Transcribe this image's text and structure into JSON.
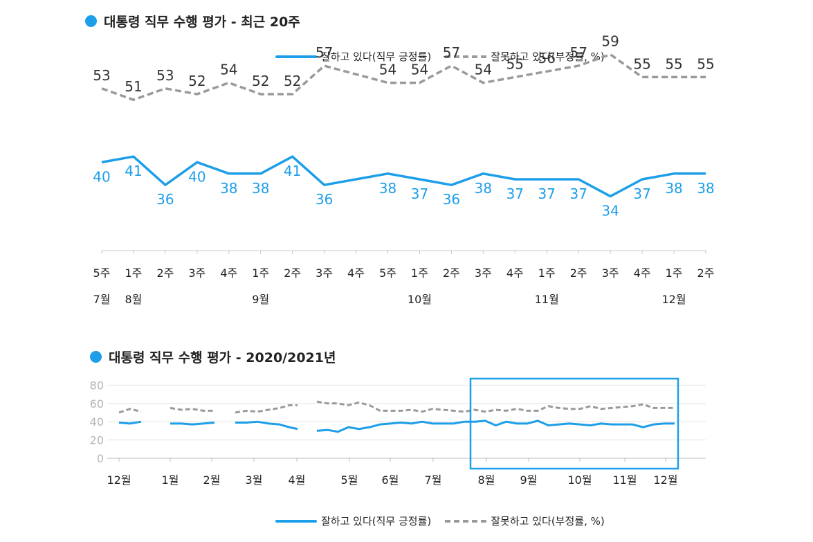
{
  "colors": {
    "approve": "#1c9ee8",
    "disapprove": "#9a9a9a",
    "highlight": "#1c9ee8"
  },
  "legend": {
    "approve_label": "잘하고 있다(직무 긍정률)",
    "disapprove_label": "잘못하고 있다(부정률, %)"
  },
  "chart_data": [
    {
      "type": "line",
      "title": "대통령 직무 수행 평가 - 최근 20주",
      "categories": [
        "5주",
        "1주",
        "2주",
        "3주",
        "4주",
        "1주",
        "2주",
        "3주",
        "4주",
        "5주",
        "1주",
        "2주",
        "3주",
        "4주",
        "1주",
        "2주",
        "3주",
        "4주",
        "1주",
        "2주"
      ],
      "month_labels": [
        {
          "index": 0,
          "label": "7월"
        },
        {
          "index": 1,
          "label": "8월"
        },
        {
          "index": 5,
          "label": "9월"
        },
        {
          "index": 10,
          "label": "10월"
        },
        {
          "index": 14,
          "label": "11월"
        },
        {
          "index": 18,
          "label": "12월"
        }
      ],
      "series": [
        {
          "name": "잘못하고 있다(부정률, %)",
          "style": "dashed",
          "values": [
            53,
            51,
            53,
            52,
            54,
            52,
            52,
            57,
            null,
            54,
            54,
            57,
            54,
            55,
            56,
            57,
            59,
            55,
            55,
            55
          ],
          "interpolated": {
            "8": 55.5
          }
        },
        {
          "name": "잘하고 있다(직무 긍정률)",
          "style": "solid",
          "values": [
            40,
            41,
            36,
            40,
            38,
            38,
            41,
            36,
            null,
            38,
            37,
            36,
            38,
            37,
            37,
            37,
            34,
            37,
            38,
            38
          ],
          "interpolated": {
            "8": 37
          }
        }
      ],
      "ylim": [
        0,
        100
      ]
    },
    {
      "type": "line",
      "title": "대통령 직무 수행 평가 - 2020/2021년",
      "yticks": [
        0,
        20,
        40,
        60,
        80
      ],
      "ylim": [
        0,
        80
      ],
      "x_month_labels": [
        "12월",
        "1월",
        "2월",
        "3월",
        "4월",
        "5월",
        "6월",
        "7월",
        "8월",
        "9월",
        "10월",
        "11월",
        "12월"
      ],
      "series": [
        {
          "name": "잘하고 있다(직무 긍정률)",
          "style": "solid",
          "segments": [
            [
              39,
              38,
              40
            ],
            [
              38,
              38,
              37,
              38,
              39
            ],
            [
              39,
              39,
              40,
              38,
              37,
              34,
              32
            ],
            [
              30,
              31,
              29,
              34,
              32,
              34,
              37,
              38,
              39,
              38,
              40,
              38,
              38,
              38,
              40,
              40,
              41,
              36,
              40,
              38,
              38,
              41,
              36,
              37,
              38,
              37,
              36,
              38,
              37,
              37,
              37,
              34,
              37,
              38,
              38
            ]
          ]
        },
        {
          "name": "잘못하고 있다(부정률, %)",
          "style": "dashed",
          "segments": [
            [
              50,
              54,
              51
            ],
            [
              55,
              53,
              54,
              52,
              52
            ],
            [
              50,
              52,
              51,
              53,
              55,
              58,
              58
            ],
            [
              62,
              60,
              60,
              58,
              61,
              58,
              52,
              52,
              52,
              53,
              51,
              54,
              53,
              52,
              51,
              53,
              51,
              53,
              52,
              54,
              52,
              52,
              57,
              55,
              54,
              54,
              57,
              54,
              55,
              56,
              57,
              59,
              55,
              55,
              55
            ]
          ]
        }
      ],
      "highlight_label": "최근 20주"
    }
  ]
}
